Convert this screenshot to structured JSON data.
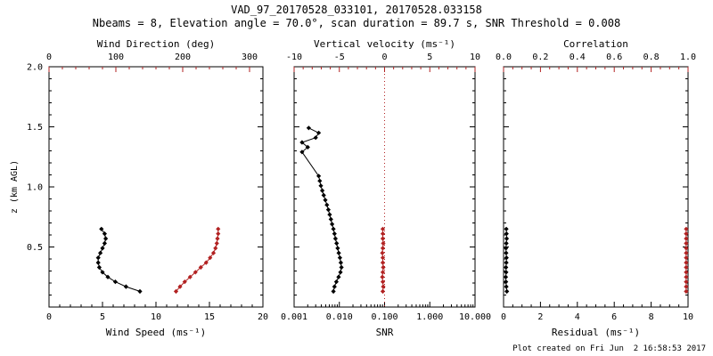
{
  "title": "VAD_97_20170528_033101, 20170528.033158",
  "subtitle": "Nbeams = 8, Elevation angle = 70.0°, scan duration = 89.7 s, SNR Threshold = 0.008",
  "footer": "Plot created on Fri Jun  2 16:58:53 2017",
  "ylabel": "z (km AGL)",
  "colors": {
    "fg": "#000000",
    "accent": "#b22222"
  },
  "chart_data": [
    {
      "type": "line",
      "name": "wind",
      "ylim": [
        0,
        2.0
      ],
      "yticks": [
        0,
        0.5,
        1.0,
        1.5,
        2.0
      ],
      "ytick_labels": [
        "",
        "0.5",
        "1.0",
        "1.5",
        "2.0"
      ],
      "bottom_axis": {
        "label": "Wind Speed (ms⁻¹)",
        "lim": [
          0,
          20
        ],
        "ticks": [
          0,
          5,
          10,
          15,
          20
        ],
        "tick_labels": [
          "0",
          "5",
          "10",
          "15",
          "20"
        ],
        "minor": 1
      },
      "top_axis": {
        "label": "Wind Direction (deg)",
        "lim": [
          0,
          320
        ],
        "ticks": [
          0,
          100,
          200,
          300
        ],
        "tick_labels": [
          "0",
          "100",
          "200",
          "300"
        ],
        "minor": 20
      },
      "series": [
        {
          "name": "wind-speed",
          "axis": "bottom",
          "color": "fg",
          "points": [
            [
              8.5,
              0.13
            ],
            [
              7.2,
              0.17
            ],
            [
              6.2,
              0.21
            ],
            [
              5.5,
              0.25
            ],
            [
              5.0,
              0.29
            ],
            [
              4.7,
              0.33
            ],
            [
              4.6,
              0.37
            ],
            [
              4.6,
              0.41
            ],
            [
              4.8,
              0.45
            ],
            [
              5.0,
              0.49
            ],
            [
              5.2,
              0.53
            ],
            [
              5.3,
              0.57
            ],
            [
              5.2,
              0.61
            ],
            [
              4.9,
              0.65
            ]
          ]
        },
        {
          "name": "wind-direction",
          "axis": "top",
          "color": "accent",
          "points": [
            [
              190,
              0.13
            ],
            [
              196,
              0.17
            ],
            [
              203,
              0.21
            ],
            [
              211,
              0.25
            ],
            [
              219,
              0.29
            ],
            [
              227,
              0.33
            ],
            [
              235,
              0.37
            ],
            [
              241,
              0.41
            ],
            [
              246,
              0.45
            ],
            [
              249,
              0.49
            ],
            [
              251,
              0.53
            ],
            [
              252,
              0.57
            ],
            [
              253,
              0.61
            ],
            [
              253,
              0.65
            ]
          ]
        }
      ]
    },
    {
      "type": "line",
      "name": "snr-vertical-velocity",
      "ylim": [
        0,
        2.0
      ],
      "yticks": [
        0,
        0.5,
        1.0,
        1.5,
        2.0
      ],
      "ytick_labels": [
        "",
        "0.5",
        "1.0",
        "1.5",
        "2.0"
      ],
      "bottom_axis": {
        "label": "SNR",
        "lim": [
          0.001,
          10
        ],
        "log": true,
        "ticks": [
          0.001,
          0.01,
          0.1,
          1,
          10
        ],
        "tick_labels": [
          "0.001",
          "0.010",
          "0.100",
          "1.000",
          "10.000"
        ]
      },
      "top_axis": {
        "label": "Vertical velocity (ms⁻¹)",
        "lim": [
          -10,
          10
        ],
        "ticks": [
          -10,
          -5,
          0,
          5,
          10
        ],
        "tick_labels": [
          "-10",
          "-5",
          "0",
          "5",
          "10"
        ],
        "minor": 1,
        "refline": 0
      },
      "series": [
        {
          "name": "snr",
          "axis": "bottom",
          "color": "fg",
          "points": [
            [
              0.0074,
              0.13
            ],
            [
              0.0078,
              0.17
            ],
            [
              0.0086,
              0.21
            ],
            [
              0.0096,
              0.25
            ],
            [
              0.0106,
              0.29
            ],
            [
              0.0111,
              0.33
            ],
            [
              0.0108,
              0.37
            ],
            [
              0.0103,
              0.41
            ],
            [
              0.0097,
              0.45
            ],
            [
              0.0092,
              0.49
            ],
            [
              0.0087,
              0.53
            ],
            [
              0.0082,
              0.57
            ],
            [
              0.0078,
              0.61
            ],
            [
              0.0074,
              0.65
            ],
            [
              0.0069,
              0.69
            ],
            [
              0.0065,
              0.73
            ],
            [
              0.0061,
              0.77
            ],
            [
              0.0057,
              0.81
            ],
            [
              0.0053,
              0.85
            ],
            [
              0.0049,
              0.89
            ],
            [
              0.0045,
              0.93
            ],
            [
              0.0042,
              0.97
            ],
            [
              0.0039,
              1.01
            ],
            [
              0.0037,
              1.05
            ],
            [
              0.0035,
              1.09
            ],
            [
              0.0015,
              1.29
            ],
            [
              0.002,
              1.33
            ],
            [
              0.0015,
              1.37
            ],
            [
              0.003,
              1.41
            ],
            [
              0.0035,
              1.45
            ],
            [
              0.0021,
              1.49
            ]
          ]
        },
        {
          "name": "vertical-velocity",
          "axis": "top",
          "color": "accent",
          "points": [
            [
              -0.2,
              0.13
            ],
            [
              -0.15,
              0.17
            ],
            [
              -0.2,
              0.21
            ],
            [
              -0.25,
              0.25
            ],
            [
              -0.2,
              0.29
            ],
            [
              -0.15,
              0.33
            ],
            [
              -0.2,
              0.37
            ],
            [
              -0.2,
              0.41
            ],
            [
              -0.25,
              0.45
            ],
            [
              -0.2,
              0.49
            ],
            [
              -0.15,
              0.53
            ],
            [
              -0.2,
              0.57
            ],
            [
              -0.2,
              0.61
            ],
            [
              -0.2,
              0.65
            ]
          ]
        }
      ]
    },
    {
      "type": "line",
      "name": "residual-correlation",
      "ylim": [
        0,
        2.0
      ],
      "yticks": [
        0,
        0.5,
        1.0,
        1.5,
        2.0
      ],
      "ytick_labels": [
        "",
        "0.5",
        "1.0",
        "1.5",
        "2.0"
      ],
      "bottom_axis": {
        "label": "Residual (ms⁻¹)",
        "lim": [
          0,
          10
        ],
        "ticks": [
          0,
          2,
          4,
          6,
          8,
          10
        ],
        "tick_labels": [
          "0",
          "2",
          "4",
          "6",
          "8",
          "10"
        ],
        "minor": 0.5
      },
      "top_axis": {
        "label": "Correlation",
        "lim": [
          0,
          1
        ],
        "ticks": [
          0,
          0.2,
          0.4,
          0.6,
          0.8,
          1.0
        ],
        "tick_labels": [
          "0.0",
          "0.2",
          "0.4",
          "0.6",
          "0.8",
          "1.0"
        ],
        "minor": 0.05
      },
      "series": [
        {
          "name": "residual",
          "axis": "bottom",
          "color": "fg",
          "points": [
            [
              0.18,
              0.13
            ],
            [
              0.15,
              0.17
            ],
            [
              0.13,
              0.21
            ],
            [
              0.12,
              0.25
            ],
            [
              0.14,
              0.29
            ],
            [
              0.13,
              0.33
            ],
            [
              0.15,
              0.37
            ],
            [
              0.16,
              0.41
            ],
            [
              0.14,
              0.45
            ],
            [
              0.13,
              0.49
            ],
            [
              0.15,
              0.53
            ],
            [
              0.17,
              0.57
            ],
            [
              0.16,
              0.61
            ],
            [
              0.15,
              0.65
            ]
          ]
        },
        {
          "name": "correlation",
          "axis": "top",
          "color": "accent",
          "points": [
            [
              0.99,
              0.13
            ],
            [
              0.99,
              0.17
            ],
            [
              0.99,
              0.21
            ],
            [
              0.99,
              0.25
            ],
            [
              0.99,
              0.29
            ],
            [
              0.99,
              0.33
            ],
            [
              0.99,
              0.37
            ],
            [
              0.99,
              0.41
            ],
            [
              0.99,
              0.45
            ],
            [
              0.99,
              0.49
            ],
            [
              0.99,
              0.53
            ],
            [
              0.99,
              0.57
            ],
            [
              0.99,
              0.61
            ],
            [
              0.99,
              0.65
            ]
          ]
        }
      ]
    }
  ]
}
